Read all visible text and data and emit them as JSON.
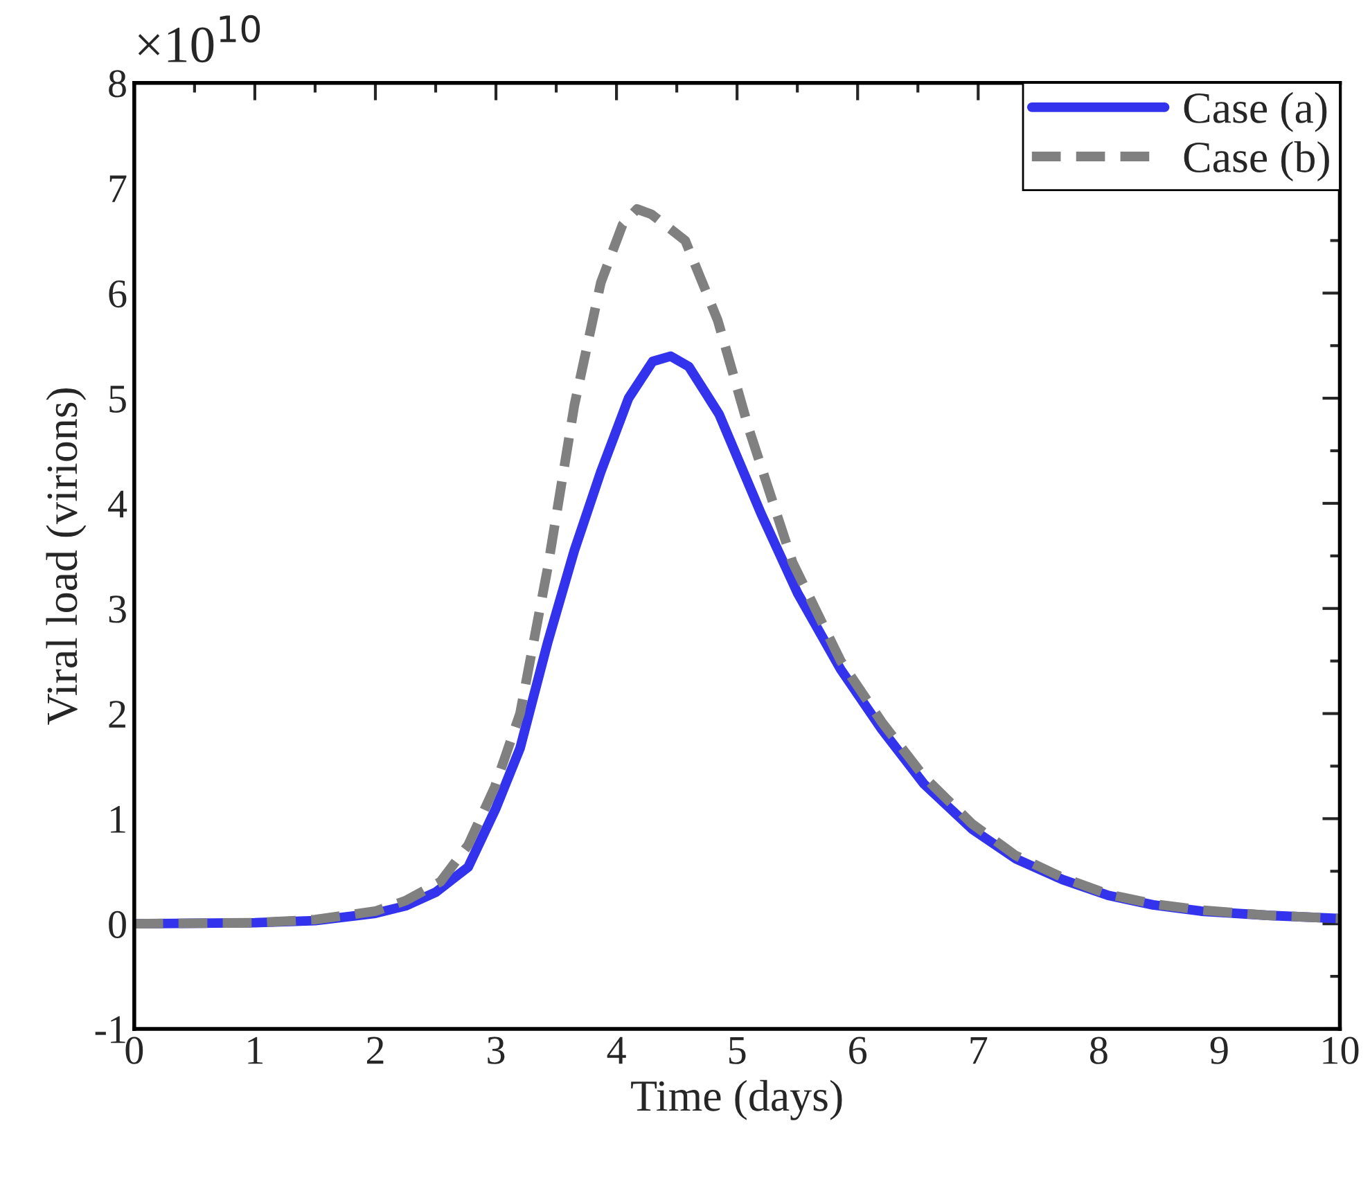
{
  "chart_data": {
    "type": "line",
    "xlabel": "Time (days)",
    "ylabel": "Viral load (virions)",
    "annotations": [
      "×10$^{10}$"
    ],
    "xlim": [
      0,
      10
    ],
    "xticks": [
      0,
      1,
      2,
      3,
      4,
      5,
      6,
      7,
      8,
      9,
      10
    ],
    "ylim": [
      -1,
      8
    ],
    "yticks": [
      -1,
      0,
      1,
      2,
      3,
      4,
      5,
      6,
      7,
      8
    ],
    "grid": false,
    "legend": "top right",
    "series": [
      {
        "name": "Case (a)",
        "color": "#3333ee",
        "line_style": "solid",
        "x": [
          0,
          1,
          1.5,
          2,
          2.25,
          2.5,
          2.77,
          3.0,
          3.2,
          3.43,
          3.65,
          3.87,
          4.1,
          4.3,
          4.45,
          4.6,
          4.85,
          5.2,
          5.5,
          5.86,
          6.2,
          6.55,
          6.95,
          7.31,
          7.7,
          8.08,
          8.45,
          8.85,
          9.4,
          10
        ],
        "values": [
          0,
          0.01,
          0.03,
          0.1,
          0.17,
          0.3,
          0.54,
          1.1,
          1.67,
          2.68,
          3.55,
          4.3,
          5.0,
          5.35,
          5.4,
          5.3,
          4.85,
          3.9,
          3.15,
          2.42,
          1.85,
          1.33,
          0.9,
          0.62,
          0.42,
          0.27,
          0.18,
          0.12,
          0.08,
          0.05
        ]
      },
      {
        "name": "Case (b)",
        "color": "#808080",
        "line_style": "dashed",
        "x": [
          0,
          1,
          1.5,
          2,
          2.25,
          2.54,
          2.77,
          2.99,
          3.2,
          3.43,
          3.65,
          3.87,
          4.05,
          4.17,
          4.29,
          4.57,
          4.84,
          5.1,
          5.46,
          5.86,
          6.2,
          6.55,
          6.95,
          7.31,
          7.7,
          8.08,
          8.45,
          8.85,
          9.4,
          10
        ],
        "values": [
          0,
          0.01,
          0.04,
          0.12,
          0.22,
          0.4,
          0.75,
          1.3,
          2.0,
          3.39,
          4.93,
          6.1,
          6.65,
          6.8,
          6.75,
          6.5,
          5.74,
          4.7,
          3.44,
          2.5,
          1.92,
          1.4,
          0.95,
          0.65,
          0.44,
          0.28,
          0.19,
          0.13,
          0.08,
          0.05
        ]
      }
    ]
  }
}
